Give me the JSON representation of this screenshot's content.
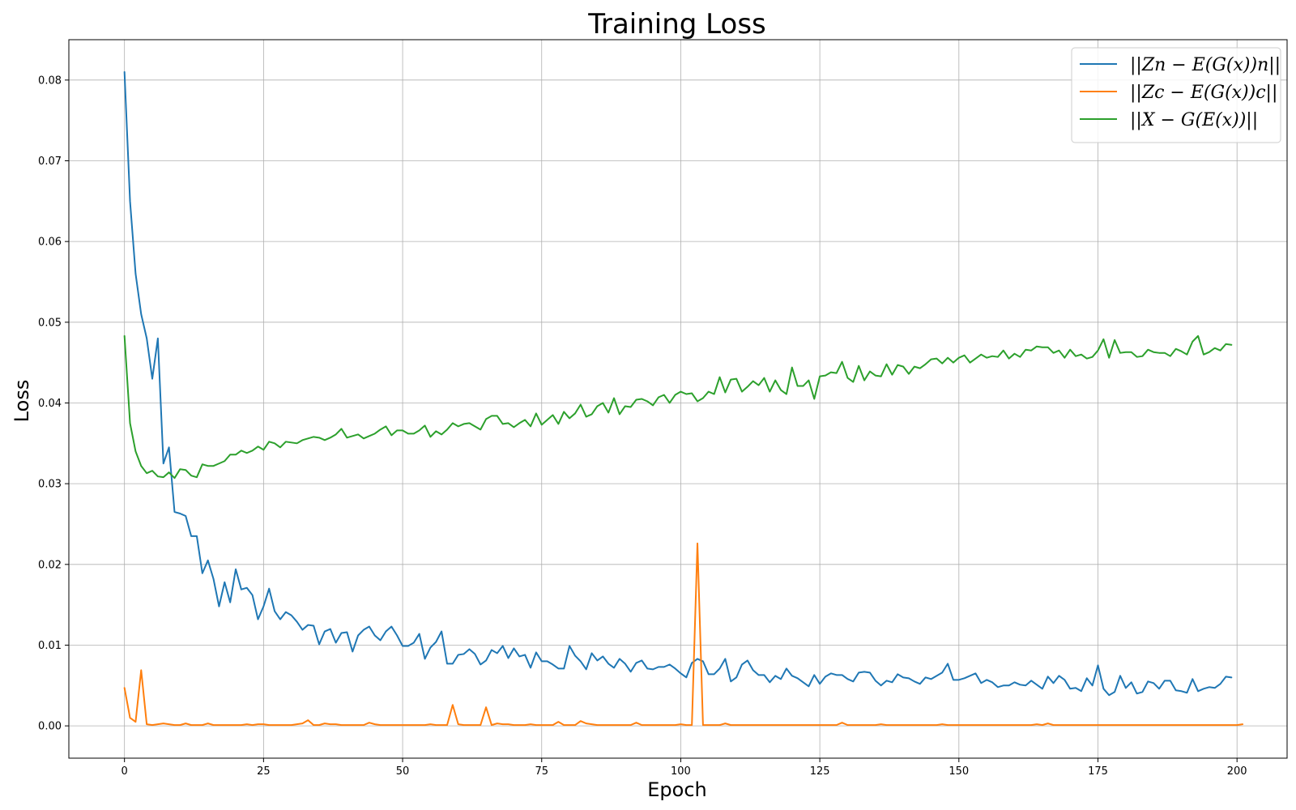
{
  "chart_data": {
    "type": "line",
    "title": "Training Loss",
    "xlabel": "Epoch",
    "ylabel": "Loss",
    "xlim": [
      -10,
      209
    ],
    "ylim": [
      -0.004,
      0.085
    ],
    "xticks": [
      0,
      25,
      50,
      75,
      100,
      125,
      150,
      175,
      200
    ],
    "yticks": [
      0.0,
      0.01,
      0.02,
      0.03,
      0.04,
      0.05,
      0.06,
      0.07,
      0.08
    ],
    "xtick_labels": [
      "0",
      "25",
      "50",
      "75",
      "100",
      "125",
      "150",
      "175",
      "200"
    ],
    "ytick_labels": [
      "0.00",
      "0.01",
      "0.02",
      "0.03",
      "0.04",
      "0.05",
      "0.06",
      "0.07",
      "0.08"
    ],
    "grid": true,
    "legend_position": "top-right",
    "series": [
      {
        "name": "||Zn − E(G(x))n||",
        "color": "#1f77b4",
        "values": [
          0.081,
          0.065,
          0.056,
          0.051,
          0.048,
          0.043,
          0.048,
          0.0325,
          0.0345,
          0.0265,
          0.0263,
          0.026,
          0.0235,
          0.0235,
          0.0189,
          0.0205,
          0.0182,
          0.0148,
          0.0178,
          0.0153,
          0.0194,
          0.0169,
          0.0171,
          0.0162,
          0.0132,
          0.0148,
          0.017,
          0.0142,
          0.0132,
          0.0141,
          0.0137,
          0.0129,
          0.0119,
          0.0125,
          0.0124,
          0.0101,
          0.0117,
          0.012,
          0.0103,
          0.0115,
          0.0116,
          0.0092,
          0.0112,
          0.0119,
          0.0123,
          0.0112,
          0.0106,
          0.0117,
          0.0123,
          0.0112,
          0.0099,
          0.0099,
          0.0103,
          0.0114,
          0.0083,
          0.0097,
          0.0104,
          0.0117,
          0.0077,
          0.0077,
          0.0088,
          0.0089,
          0.0095,
          0.0089,
          0.0076,
          0.0081,
          0.0094,
          0.009,
          0.0099,
          0.0084,
          0.0096,
          0.0086,
          0.0088,
          0.0072,
          0.0091,
          0.008,
          0.008,
          0.0076,
          0.0071,
          0.0071,
          0.0099,
          0.0087,
          0.008,
          0.007,
          0.009,
          0.0081,
          0.0086,
          0.0077,
          0.0072,
          0.0083,
          0.0077,
          0.0067,
          0.0078,
          0.0081,
          0.0071,
          0.007,
          0.0073,
          0.0073,
          0.0076,
          0.0071,
          0.0065,
          0.006,
          0.0078,
          0.0083,
          0.008,
          0.0064,
          0.0064,
          0.0071,
          0.0083,
          0.0055,
          0.006,
          0.0076,
          0.0081,
          0.0069,
          0.0063,
          0.0063,
          0.0054,
          0.0062,
          0.0058,
          0.0071,
          0.0062,
          0.0059,
          0.0054,
          0.0049,
          0.0063,
          0.0052,
          0.0061,
          0.0065,
          0.0063,
          0.0063,
          0.0058,
          0.0055,
          0.0066,
          0.0067,
          0.0066,
          0.0056,
          0.005,
          0.0056,
          0.0054,
          0.0064,
          0.006,
          0.0059,
          0.0055,
          0.0052,
          0.006,
          0.0058,
          0.0062,
          0.0066,
          0.0077,
          0.0057,
          0.0057,
          0.0059,
          0.0062,
          0.0065,
          0.0053,
          0.0057,
          0.0054,
          0.0048,
          0.005,
          0.005,
          0.0054,
          0.0051,
          0.005,
          0.0056,
          0.0051,
          0.0046,
          0.0061,
          0.0053,
          0.0062,
          0.0057,
          0.0046,
          0.0047,
          0.0043,
          0.0059,
          0.005,
          0.0075,
          0.0046,
          0.0038,
          0.0042,
          0.0062,
          0.0047,
          0.0054,
          0.004,
          0.0042,
          0.0055,
          0.0053,
          0.0046,
          0.0056,
          0.0056,
          0.0044,
          0.0043,
          0.0041,
          0.0058,
          0.0043,
          0.0046,
          0.0048,
          0.0047,
          0.0052,
          0.0061,
          0.006
        ]
      },
      {
        "name": "||Zc − E(G(x))c||",
        "color": "#ff7f0e",
        "values": [
          0.0047,
          0.001,
          0.0005,
          0.0069,
          0.0002,
          0.0001,
          0.0002,
          0.0003,
          0.0002,
          0.0001,
          0.0001,
          0.0003,
          0.0001,
          0.0001,
          0.0001,
          0.0003,
          0.0001,
          0.0001,
          0.0001,
          0.0001,
          0.0001,
          0.0001,
          0.0002,
          0.0001,
          0.0002,
          0.0002,
          0.0001,
          0.0001,
          0.0001,
          0.0001,
          0.0001,
          0.0002,
          0.0003,
          0.0007,
          0.0001,
          0.0001,
          0.0003,
          0.0002,
          0.0002,
          0.0001,
          0.0001,
          0.0001,
          0.0001,
          0.0001,
          0.0004,
          0.0002,
          0.0001,
          0.0001,
          0.0001,
          0.0001,
          0.0001,
          0.0001,
          0.0001,
          0.0001,
          0.0001,
          0.0002,
          0.0001,
          0.0001,
          0.0001,
          0.0026,
          0.0002,
          0.0001,
          0.0001,
          0.0001,
          0.0001,
          0.0023,
          0.0001,
          0.0003,
          0.0002,
          0.0002,
          0.0001,
          0.0001,
          0.0001,
          0.0002,
          0.0001,
          0.0001,
          0.0001,
          0.0001,
          0.0005,
          0.0001,
          0.0001,
          0.0001,
          0.0006,
          0.0003,
          0.0002,
          0.0001,
          0.0001,
          0.0001,
          0.0001,
          0.0001,
          0.0001,
          0.0001,
          0.0004,
          0.0001,
          0.0001,
          0.0001,
          0.0001,
          0.0001,
          0.0001,
          0.0001,
          0.0002,
          0.0001,
          0.0001,
          0.0226,
          0.0001,
          0.0001,
          0.0001,
          0.0001,
          0.0003,
          0.0001,
          0.0001,
          0.0001,
          0.0001,
          0.0001,
          0.0001,
          0.0001,
          0.0001,
          0.0001,
          0.0001,
          0.0001,
          0.0001,
          0.0001,
          0.0001,
          0.0001,
          0.0001,
          0.0001,
          0.0001,
          0.0001,
          0.0001,
          0.0004,
          0.0001,
          0.0001,
          0.0001,
          0.0001,
          0.0001,
          0.0001,
          0.0002,
          0.0001,
          0.0001,
          0.0001,
          0.0001,
          0.0001,
          0.0001,
          0.0001,
          0.0001,
          0.0001,
          0.0001,
          0.0002,
          0.0001,
          0.0001,
          0.0001,
          0.0001,
          0.0001,
          0.0001,
          0.0001,
          0.0001,
          0.0001,
          0.0001,
          0.0001,
          0.0001,
          0.0001,
          0.0001,
          0.0001,
          0.0001,
          0.0002,
          0.0001,
          0.0003,
          0.0001,
          0.0001,
          0.0001,
          0.0001,
          0.0001,
          0.0001,
          0.0001,
          0.0001,
          0.0001,
          0.0001,
          0.0001,
          0.0001,
          0.0001,
          0.0001,
          0.0001,
          0.0001,
          0.0001,
          0.0001,
          0.0001,
          0.0001,
          0.0001,
          0.0001,
          0.0001,
          0.0001,
          0.0001,
          0.0001,
          0.0001,
          0.0001,
          0.0001,
          0.0001,
          0.0001,
          0.0001,
          0.0001,
          0.0001,
          0.0002
        ]
      },
      {
        "name": "||X − G(E(x))||",
        "color": "#2ca02c",
        "values": [
          0.0483,
          0.0375,
          0.034,
          0.0322,
          0.0313,
          0.0316,
          0.0309,
          0.0308,
          0.0314,
          0.0307,
          0.0318,
          0.0317,
          0.031,
          0.0308,
          0.0324,
          0.0322,
          0.0322,
          0.0325,
          0.0328,
          0.0336,
          0.0336,
          0.0341,
          0.0338,
          0.0341,
          0.0346,
          0.0342,
          0.0352,
          0.035,
          0.0345,
          0.0352,
          0.0351,
          0.035,
          0.0354,
          0.0356,
          0.0358,
          0.0357,
          0.0354,
          0.0357,
          0.0361,
          0.0368,
          0.0357,
          0.0359,
          0.0361,
          0.0356,
          0.0359,
          0.0362,
          0.0367,
          0.0371,
          0.036,
          0.0366,
          0.0366,
          0.0362,
          0.0362,
          0.0366,
          0.0372,
          0.0358,
          0.0365,
          0.0361,
          0.0367,
          0.0375,
          0.0371,
          0.0374,
          0.0375,
          0.0371,
          0.0367,
          0.038,
          0.0384,
          0.0384,
          0.0374,
          0.0375,
          0.037,
          0.0375,
          0.0379,
          0.0371,
          0.0387,
          0.0373,
          0.0379,
          0.0385,
          0.0374,
          0.0389,
          0.0381,
          0.0387,
          0.0398,
          0.0383,
          0.0386,
          0.0396,
          0.04,
          0.0388,
          0.0406,
          0.0386,
          0.0396,
          0.0395,
          0.0404,
          0.0405,
          0.0402,
          0.0397,
          0.0407,
          0.041,
          0.04,
          0.041,
          0.0414,
          0.0411,
          0.0412,
          0.0402,
          0.0406,
          0.0414,
          0.0411,
          0.0432,
          0.0413,
          0.0429,
          0.043,
          0.0414,
          0.042,
          0.0427,
          0.0422,
          0.0431,
          0.0414,
          0.0428,
          0.0416,
          0.0411,
          0.0444,
          0.0421,
          0.0421,
          0.0428,
          0.0405,
          0.0433,
          0.0434,
          0.0438,
          0.0437,
          0.0451,
          0.0431,
          0.0426,
          0.0446,
          0.0428,
          0.0439,
          0.0434,
          0.0433,
          0.0448,
          0.0435,
          0.0447,
          0.0445,
          0.0436,
          0.0445,
          0.0443,
          0.0448,
          0.0454,
          0.0455,
          0.0449,
          0.0456,
          0.045,
          0.0456,
          0.0459,
          0.045,
          0.0455,
          0.046,
          0.0456,
          0.0458,
          0.0457,
          0.0465,
          0.0455,
          0.0461,
          0.0457,
          0.0466,
          0.0465,
          0.047,
          0.0469,
          0.0469,
          0.0462,
          0.0465,
          0.0456,
          0.0466,
          0.0458,
          0.046,
          0.0455,
          0.0457,
          0.0465,
          0.0479,
          0.0456,
          0.0478,
          0.0462,
          0.0463,
          0.0463,
          0.0457,
          0.0458,
          0.0466,
          0.0463,
          0.0462,
          0.0462,
          0.0458,
          0.0467,
          0.0464,
          0.046,
          0.0476,
          0.0483,
          0.046,
          0.0463,
          0.0468,
          0.0465,
          0.0473,
          0.0472
        ]
      }
    ]
  }
}
